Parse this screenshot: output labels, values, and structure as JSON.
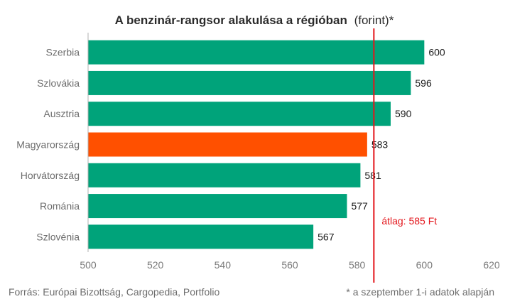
{
  "chart_data": {
    "type": "bar",
    "orientation": "horizontal",
    "title": "A benzinár-rangsor alakulása a régióban",
    "title_suffix": "(forint)*",
    "categories": [
      "Szerbia",
      "Szlovákia",
      "Ausztria",
      "Magyarország",
      "Horvátország",
      "Románia",
      "Szlovénia"
    ],
    "values": [
      600,
      596,
      590,
      583,
      581,
      577,
      567
    ],
    "value_labels": [
      "600",
      "596",
      "590",
      "583",
      "581",
      "577",
      "567"
    ],
    "colors": [
      "#00a37a",
      "#00a37a",
      "#00a37a",
      "#ff5000",
      "#00a37a",
      "#00a37a",
      "#00a37a"
    ],
    "highlight_category": "Magyarország",
    "xlim": [
      500,
      620
    ],
    "xticks": [
      500,
      520,
      540,
      560,
      580,
      600,
      620
    ],
    "xtick_labels": [
      "500",
      "520",
      "540",
      "560",
      "580",
      "600",
      "620"
    ],
    "grid": false,
    "reference_line": {
      "value": 585,
      "label": "átlag: 585 Ft",
      "color": "#e3151b"
    },
    "source": "Forrás: Európai Bizottság, Cargopedia, Portfolio",
    "footnote": "* a szeptember 1-i adatok alapján"
  }
}
